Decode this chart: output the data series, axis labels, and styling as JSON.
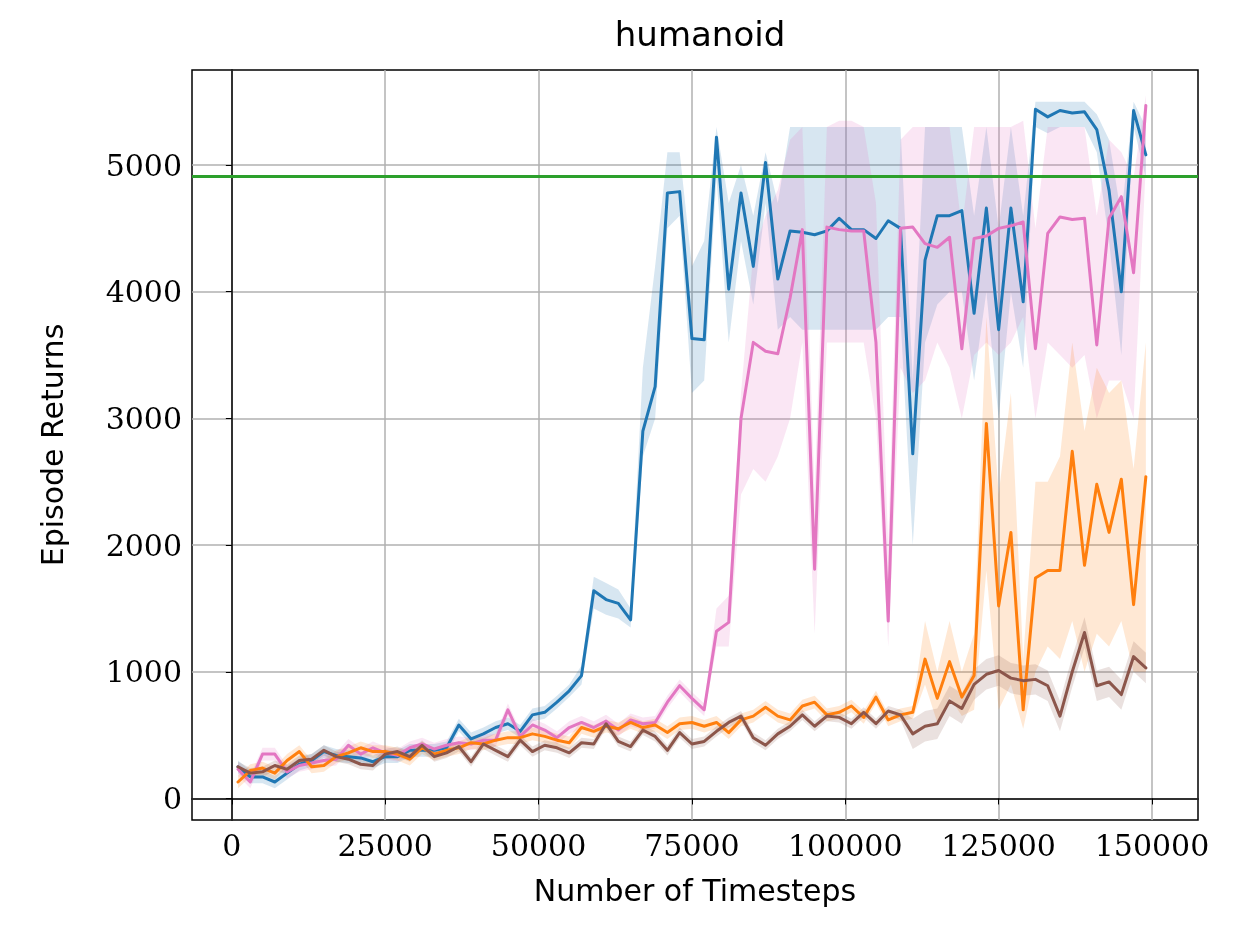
{
  "chart_data": {
    "type": "line",
    "title": "humanoid",
    "xlabel": "Number of Timesteps",
    "ylabel": "Episode Returns",
    "x": [
      1000,
      3000,
      5000,
      7000,
      9000,
      11000,
      13000,
      15000,
      17000,
      19000,
      21000,
      23000,
      25000,
      27000,
      29000,
      31000,
      33000,
      35000,
      37000,
      39000,
      41000,
      43000,
      45000,
      47000,
      49000,
      51000,
      53000,
      55000,
      57000,
      59000,
      61000,
      63000,
      65000,
      67000,
      69000,
      71000,
      73000,
      75000,
      77000,
      79000,
      81000,
      83000,
      85000,
      87000,
      89000,
      91000,
      93000,
      95000,
      97000,
      99000,
      101000,
      103000,
      105000,
      107000,
      109000,
      111000,
      113000,
      115000,
      117000,
      119000,
      121000,
      123000,
      125000,
      127000,
      129000,
      131000,
      133000,
      135000,
      137000,
      139000,
      141000,
      143000,
      145000,
      147000,
      149000
    ],
    "xlim": [
      -6500,
      157500
    ],
    "xticks": [
      0,
      25000,
      50000,
      75000,
      100000,
      125000,
      150000
    ],
    "ylim": [
      -170,
      5750
    ],
    "yticks": [
      0,
      1000,
      2000,
      3000,
      4000,
      5000
    ],
    "grid": true,
    "legend": false,
    "marker": "none",
    "line_style": "solid",
    "ref_lines": [
      {
        "axis": "y",
        "value": 4910,
        "color": "#2ca02c"
      }
    ],
    "series": [
      {
        "color": "#1f77b4",
        "values": [
          250,
          170,
          170,
          130,
          200,
          270,
          300,
          370,
          340,
          330,
          320,
          290,
          330,
          330,
          380,
          380,
          380,
          400,
          580,
          470,
          510,
          560,
          590,
          530,
          660,
          680,
          760,
          850,
          970,
          1640,
          1570,
          1540,
          1410,
          2900,
          3250,
          4780,
          4790,
          3630,
          3620,
          5220,
          4020,
          4780,
          4200,
          5020,
          4100,
          4480,
          4470,
          4450,
          4480,
          4580,
          4490,
          4490,
          4420,
          4560,
          4500,
          2720,
          4250,
          4600,
          4600,
          4640,
          3830,
          4660,
          3700,
          4660,
          3920,
          5440,
          5380,
          5430,
          5410,
          5420,
          5280,
          4800,
          4000,
          5430,
          5080
        ],
        "lower": [
          200,
          120,
          120,
          80,
          150,
          220,
          250,
          320,
          290,
          280,
          270,
          240,
          280,
          280,
          330,
          330,
          330,
          350,
          530,
          420,
          460,
          510,
          540,
          480,
          610,
          630,
          710,
          800,
          900,
          1500,
          1450,
          1420,
          1350,
          2700,
          3000,
          4500,
          4600,
          3200,
          3300,
          4900,
          3600,
          4400,
          3900,
          4700,
          3700,
          3800,
          3700,
          3700,
          3700,
          3700,
          3700,
          3700,
          3700,
          3800,
          3800,
          2000,
          3600,
          3900,
          4000,
          4000,
          3300,
          4000,
          3000,
          4000,
          3400,
          5300,
          5250,
          5300,
          5300,
          5300,
          5100,
          4400,
          3500,
          5300,
          4900
        ],
        "upper": [
          300,
          220,
          220,
          180,
          250,
          320,
          350,
          420,
          390,
          380,
          370,
          340,
          380,
          380,
          430,
          430,
          430,
          450,
          630,
          520,
          560,
          610,
          640,
          580,
          710,
          730,
          810,
          900,
          1050,
          1750,
          1700,
          1650,
          1500,
          3400,
          4200,
          5100,
          5100,
          4200,
          4400,
          5300,
          4700,
          5000,
          4600,
          5100,
          4700,
          5300,
          5300,
          5300,
          5300,
          5300,
          5300,
          5300,
          5300,
          5300,
          5300,
          3300,
          5300,
          5300,
          5300,
          5300,
          4600,
          5300,
          4500,
          5300,
          4600,
          5500,
          5500,
          5500,
          5500,
          5500,
          5400,
          5200,
          4600,
          5500,
          5300
        ]
      },
      {
        "color": "#e377c2",
        "values": [
          230,
          130,
          350,
          350,
          210,
          260,
          280,
          300,
          310,
          420,
          350,
          400,
          360,
          340,
          400,
          430,
          390,
          420,
          440,
          430,
          460,
          460,
          700,
          490,
          580,
          540,
          480,
          560,
          600,
          560,
          610,
          540,
          620,
          590,
          600,
          760,
          890,
          790,
          700,
          1320,
          1390,
          3000,
          3600,
          3530,
          3510,
          3950,
          4490,
          1810,
          4510,
          4490,
          4480,
          4480,
          3600,
          1400,
          4500,
          4510,
          4380,
          4350,
          4430,
          3550,
          4420,
          4440,
          4500,
          4520,
          4550,
          3550,
          4460,
          4590,
          4570,
          4580,
          3580,
          4580,
          4750,
          4150,
          5470
        ],
        "lower": [
          180,
          80,
          300,
          300,
          160,
          210,
          230,
          250,
          260,
          370,
          300,
          350,
          310,
          290,
          350,
          380,
          340,
          370,
          390,
          380,
          410,
          410,
          650,
          440,
          530,
          490,
          430,
          510,
          550,
          510,
          560,
          490,
          570,
          540,
          550,
          710,
          840,
          740,
          650,
          1200,
          1200,
          2400,
          2600,
          2500,
          2700,
          3000,
          3600,
          1300,
          3600,
          3600,
          3600,
          3600,
          3000,
          1200,
          3400,
          3200,
          3300,
          3600,
          3400,
          3000,
          3500,
          3600,
          3500,
          3600,
          3800,
          3000,
          3600,
          3500,
          3400,
          3500,
          3000,
          3300,
          3300,
          3000,
          5000
        ],
        "upper": [
          280,
          180,
          400,
          400,
          260,
          310,
          330,
          350,
          360,
          470,
          400,
          450,
          410,
          390,
          450,
          480,
          440,
          470,
          490,
          480,
          510,
          510,
          750,
          540,
          630,
          590,
          530,
          610,
          650,
          610,
          660,
          590,
          670,
          640,
          650,
          810,
          940,
          840,
          750,
          1500,
          1600,
          3200,
          4300,
          4600,
          4800,
          5200,
          5300,
          2400,
          5300,
          5350,
          5350,
          5300,
          4700,
          2000,
          5200,
          5300,
          5300,
          5300,
          5300,
          4500,
          5300,
          5300,
          5300,
          5300,
          5350,
          4500,
          5300,
          5300,
          5300,
          5300,
          4600,
          5200,
          5100,
          4900,
          5550
        ]
      },
      {
        "color": "#ff7f0e",
        "values": [
          130,
          220,
          240,
          200,
          300,
          370,
          250,
          260,
          330,
          360,
          400,
          370,
          370,
          350,
          310,
          400,
          350,
          380,
          400,
          440,
          430,
          460,
          480,
          480,
          510,
          490,
          460,
          440,
          560,
          530,
          570,
          550,
          600,
          560,
          580,
          520,
          590,
          600,
          570,
          600,
          520,
          620,
          650,
          720,
          650,
          620,
          730,
          760,
          660,
          680,
          730,
          640,
          800,
          620,
          660,
          680,
          1100,
          790,
          1080,
          800,
          970,
          2960,
          1520,
          2100,
          700,
          1740,
          1800,
          1800,
          2740,
          1840,
          2480,
          2100,
          2520,
          1530,
          2540
        ],
        "lower": [
          80,
          170,
          190,
          150,
          250,
          320,
          200,
          210,
          280,
          310,
          350,
          320,
          320,
          300,
          260,
          350,
          300,
          330,
          350,
          390,
          380,
          410,
          430,
          430,
          460,
          440,
          410,
          390,
          510,
          480,
          520,
          500,
          550,
          510,
          530,
          470,
          540,
          550,
          520,
          550,
          470,
          570,
          600,
          670,
          600,
          570,
          680,
          710,
          610,
          630,
          680,
          590,
          750,
          570,
          610,
          630,
          900,
          600,
          800,
          650,
          700,
          1800,
          700,
          900,
          550,
          1000,
          1200,
          1100,
          1400,
          1000,
          1300,
          1200,
          1400,
          1000,
          1000
        ],
        "upper": [
          180,
          270,
          290,
          250,
          350,
          420,
          300,
          310,
          380,
          410,
          450,
          420,
          420,
          400,
          360,
          450,
          400,
          430,
          450,
          490,
          480,
          510,
          530,
          530,
          560,
          540,
          510,
          490,
          610,
          580,
          620,
          600,
          650,
          610,
          630,
          570,
          640,
          650,
          620,
          650,
          570,
          670,
          700,
          770,
          700,
          670,
          780,
          810,
          710,
          730,
          780,
          690,
          850,
          670,
          710,
          730,
          1400,
          1000,
          1400,
          1000,
          1300,
          3800,
          2400,
          3200,
          1100,
          2500,
          2500,
          2700,
          3600,
          2900,
          3400,
          3200,
          3300,
          2600,
          3600
        ]
      },
      {
        "color": "#8c564b",
        "values": [
          250,
          200,
          210,
          260,
          230,
          300,
          310,
          380,
          330,
          310,
          270,
          260,
          350,
          370,
          330,
          420,
          330,
          360,
          410,
          290,
          430,
          380,
          330,
          460,
          370,
          420,
          400,
          360,
          440,
          430,
          590,
          450,
          410,
          540,
          490,
          380,
          520,
          430,
          450,
          530,
          600,
          650,
          480,
          420,
          510,
          570,
          660,
          570,
          650,
          640,
          590,
          680,
          590,
          690,
          660,
          510,
          570,
          590,
          770,
          710,
          900,
          980,
          1010,
          950,
          930,
          940,
          890,
          650,
          1000,
          1310,
          890,
          920,
          820,
          1120,
          1030
        ],
        "lower": [
          210,
          160,
          170,
          220,
          190,
          260,
          270,
          340,
          290,
          270,
          230,
          220,
          310,
          330,
          290,
          380,
          290,
          320,
          370,
          250,
          390,
          340,
          290,
          420,
          330,
          380,
          360,
          320,
          400,
          390,
          550,
          410,
          370,
          500,
          450,
          340,
          480,
          390,
          410,
          490,
          560,
          610,
          440,
          380,
          470,
          530,
          620,
          530,
          610,
          600,
          550,
          640,
          550,
          650,
          620,
          390,
          450,
          470,
          650,
          590,
          780,
          860,
          890,
          830,
          810,
          820,
          770,
          530,
          880,
          1190,
          770,
          800,
          700,
          1000,
          910
        ],
        "upper": [
          290,
          240,
          250,
          300,
          270,
          340,
          350,
          420,
          370,
          350,
          310,
          300,
          390,
          410,
          370,
          460,
          370,
          400,
          450,
          330,
          470,
          420,
          370,
          500,
          410,
          460,
          440,
          400,
          480,
          470,
          630,
          490,
          450,
          580,
          530,
          420,
          560,
          470,
          490,
          570,
          640,
          690,
          520,
          460,
          550,
          610,
          700,
          610,
          690,
          680,
          630,
          720,
          630,
          730,
          700,
          630,
          690,
          710,
          890,
          830,
          1020,
          1100,
          1130,
          1070,
          1050,
          1060,
          1010,
          770,
          1120,
          1430,
          1010,
          1040,
          940,
          1240,
          1150
        ]
      }
    ]
  }
}
